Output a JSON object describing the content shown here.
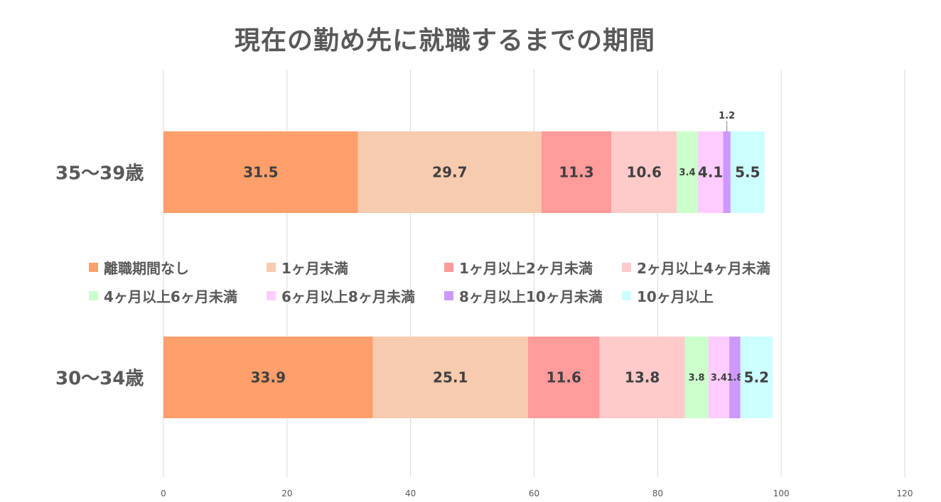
{
  "chart_data": {
    "type": "bar",
    "orientation": "horizontal",
    "stacked": true,
    "title": "現在の勤め先に就職するまでの期間",
    "categories": [
      "35〜39歳",
      "30〜34歳"
    ],
    "xlim": [
      0,
      120
    ],
    "xticks": [
      "0",
      "20",
      "40",
      "60",
      "80",
      "100",
      "120"
    ],
    "grid": true,
    "legend_position": "middle",
    "series": [
      {
        "name": "離職期間なし",
        "color": "#FF9F6B",
        "values": [
          31.5,
          33.9
        ],
        "labels": [
          "31.5",
          "33.9"
        ]
      },
      {
        "name": "1ヶ月未満",
        "color": "#F7CBAF",
        "values": [
          29.7,
          25.1
        ],
        "labels": [
          "29.7",
          "25.1"
        ]
      },
      {
        "name": "1ヶ月以上2ヶ月未満",
        "color": "#FF9B9B",
        "values": [
          11.3,
          11.6
        ],
        "labels": [
          "11.3",
          "11.6"
        ]
      },
      {
        "name": "2ヶ月以上4ヶ月未満",
        "color": "#FFCACA",
        "values": [
          10.6,
          13.8
        ],
        "labels": [
          "10.6",
          "13.8"
        ]
      },
      {
        "name": "4ヶ月以上6ヶ月未満",
        "color": "#CCFFCC",
        "values": [
          3.4,
          3.8
        ],
        "labels": [
          "3.4",
          "3.8"
        ]
      },
      {
        "name": "6ヶ月以上8ヶ月未満",
        "color": "#FFCCFF",
        "values": [
          4.1,
          3.4
        ],
        "labels": [
          "4.1",
          "3.4"
        ]
      },
      {
        "name": "8ヶ月以上10ヶ月未満",
        "color": "#CC99FF",
        "values": [
          1.2,
          1.8
        ],
        "labels": [
          "1.2",
          "1.8"
        ]
      },
      {
        "name": "10ヶ月以上",
        "color": "#CCFFFF",
        "values": [
          5.5,
          5.2
        ],
        "labels": [
          "5.5",
          "5.2"
        ]
      }
    ]
  }
}
